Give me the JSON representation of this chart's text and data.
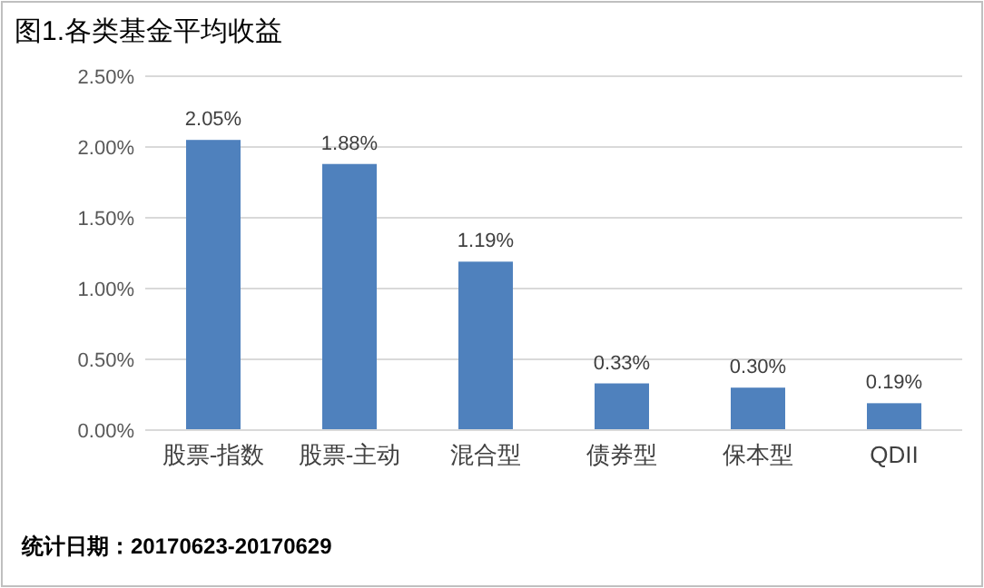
{
  "chart_data": {
    "type": "bar",
    "title": "图1.各类基金平均收益",
    "categories": [
      "股票-指数",
      "股票-主动",
      "混合型",
      "债券型",
      "保本型",
      "QDII"
    ],
    "values": [
      2.05,
      1.88,
      1.19,
      0.33,
      0.3,
      0.19
    ],
    "value_labels": [
      "2.05%",
      "1.88%",
      "1.19%",
      "0.33%",
      "0.30%",
      "0.19%"
    ],
    "color": "#4f81bd",
    "ylim": [
      0,
      2.5
    ],
    "yticks": [
      {
        "value": 0,
        "label": "0.00%"
      },
      {
        "value": 0.5,
        "label": "0.50%"
      },
      {
        "value": 1,
        "label": "1.00%"
      },
      {
        "value": 1.5,
        "label": "1.50%"
      },
      {
        "value": 2,
        "label": "2.00%"
      },
      {
        "value": 2.5,
        "label": "2.50%"
      }
    ],
    "grid": "y",
    "annotations": [
      "统计日期：20170623-20170629"
    ]
  }
}
